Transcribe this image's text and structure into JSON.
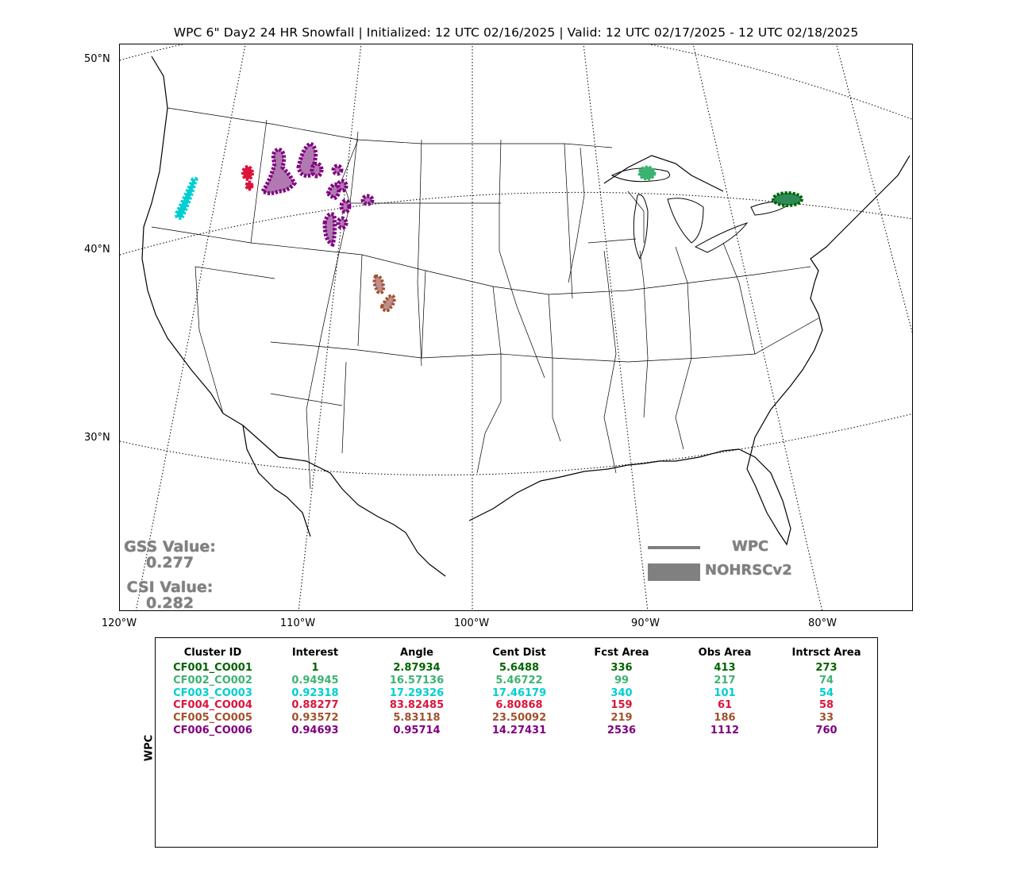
{
  "title": "WPC 6\" Day2 24 HR Snowfall | Initialized: 12 UTC 02/16/2025 | Valid: 12 UTC 02/17/2025 - 12 UTC 02/18/2025",
  "map": {
    "lat_labels": [
      "50°N",
      "40°N",
      "30°N"
    ],
    "lon_labels": [
      "120°W",
      "110°W",
      "100°W",
      "90°W",
      "80°W"
    ],
    "gss_label": "GSS Value:",
    "gss_value": "0.277",
    "csi_label": "CSI Value:",
    "csi_value": "0.282",
    "legend": {
      "line_label": "WPC",
      "fill_label": "NOHRSCv2",
      "color": "#808080"
    }
  },
  "table": {
    "ylabel": "WPC",
    "headers": [
      "Cluster ID",
      "Interest",
      "Angle",
      "Cent Dist",
      "Fcst Area",
      "Obs Area",
      "Intrsct Area"
    ],
    "rows": [
      {
        "color": "#006400",
        "cells": [
          "CF001_CO001",
          "1",
          "2.87934",
          "5.6488",
          "336",
          "413",
          "273"
        ]
      },
      {
        "color": "#3cb371",
        "cells": [
          "CF002_CO002",
          "0.94945",
          "16.57136",
          "5.46722",
          "99",
          "217",
          "74"
        ]
      },
      {
        "color": "#00ced1",
        "cells": [
          "CF003_CO003",
          "0.92318",
          "17.29326",
          "17.46179",
          "340",
          "101",
          "54"
        ]
      },
      {
        "color": "#dc143c",
        "cells": [
          "CF004_CO004",
          "0.88277",
          "83.82485",
          "6.80868",
          "159",
          "61",
          "58"
        ]
      },
      {
        "color": "#a0522d",
        "cells": [
          "CF005_CO005",
          "0.93572",
          "5.83118",
          "23.50092",
          "219",
          "186",
          "33"
        ]
      },
      {
        "color": "#800080",
        "cells": [
          "CF006_CO006",
          "0.94693",
          "0.95714",
          "14.27431",
          "2536",
          "1112",
          "760"
        ]
      }
    ]
  },
  "clusters": [
    {
      "name": "CF001",
      "color": "#006400",
      "fill": "#2e8b57"
    },
    {
      "name": "CF002",
      "color": "#3cb371",
      "fill": "#3cb371"
    },
    {
      "name": "CF003",
      "color": "#00ced1",
      "fill": "#00ced1"
    },
    {
      "name": "CF004",
      "color": "#dc143c",
      "fill": "#dc143c"
    },
    {
      "name": "CF005",
      "color": "#a0522d",
      "fill": "#bc8f8f"
    },
    {
      "name": "CF006",
      "color": "#800080",
      "fill": "#b07ab0"
    }
  ]
}
